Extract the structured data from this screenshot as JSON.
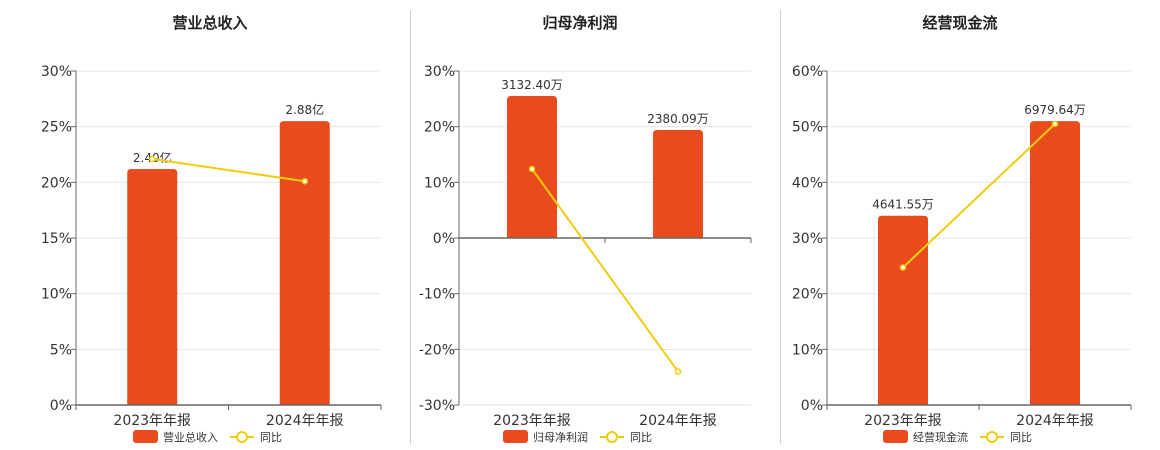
{
  "chart_data": [
    {
      "type": "bar",
      "title": "营业总收入",
      "categories": [
        "2023年年报",
        "2024年年报"
      ],
      "bar_labels": [
        "2.40亿",
        "2.88亿"
      ],
      "bar_values_pct_axis": [
        21.2,
        25.5
      ],
      "yoy_pct": [
        22.1,
        20.1
      ],
      "ylim": [
        0,
        30
      ],
      "yticks": [
        "0%",
        "5%",
        "10%",
        "15%",
        "20%",
        "25%",
        "30%"
      ],
      "legend": {
        "bar": "营业总收入",
        "line": "同比"
      },
      "grid": true
    },
    {
      "type": "bar",
      "title": "归母净利润",
      "categories": [
        "2023年年报",
        "2024年年报"
      ],
      "bar_labels": [
        "3132.40万",
        "2380.09万"
      ],
      "bar_values_pct_axis": [
        25.5,
        19.4
      ],
      "yoy_pct": [
        12.4,
        -24.0
      ],
      "ylim": [
        -30,
        30
      ],
      "yticks": [
        "-30%",
        "-20%",
        "-10%",
        "0%",
        "10%",
        "20%",
        "30%"
      ],
      "legend": {
        "bar": "归母净利润",
        "line": "同比"
      },
      "grid": true
    },
    {
      "type": "bar",
      "title": "经营现金流",
      "categories": [
        "2023年年报",
        "2024年年报"
      ],
      "bar_labels": [
        "4641.55万",
        "6979.64万"
      ],
      "bar_values_pct_axis": [
        34.0,
        51.0
      ],
      "yoy_pct": [
        24.7,
        50.5
      ],
      "ylim": [
        0,
        60
      ],
      "yticks": [
        "0%",
        "10%",
        "20%",
        "30%",
        "40%",
        "50%",
        "60%"
      ],
      "legend": {
        "bar": "经营现金流",
        "line": "同比"
      },
      "grid": true
    }
  ],
  "colors": {
    "bar": "#E84C1D",
    "line": "#F2CC0C",
    "grid": "#e6e6e6",
    "axis": "#666666",
    "text": "#333333"
  }
}
